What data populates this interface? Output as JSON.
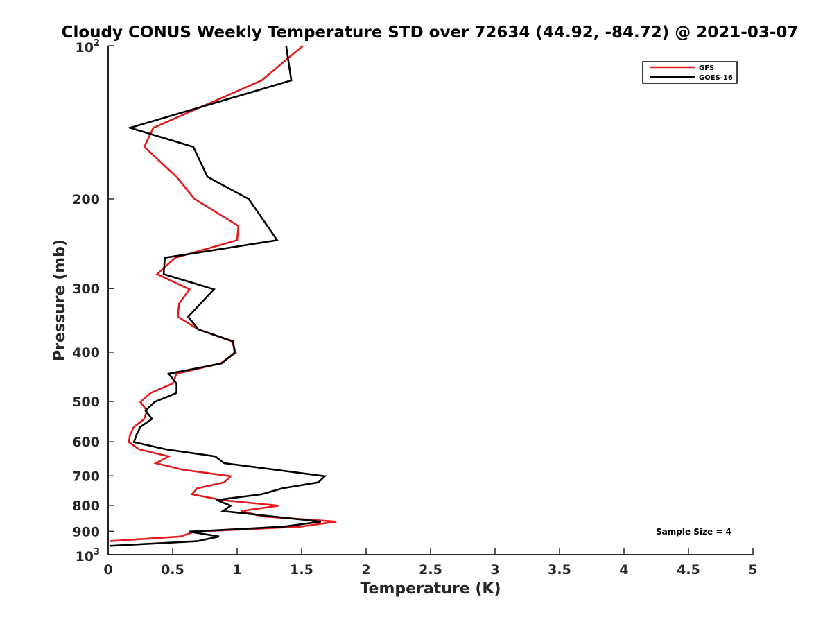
{
  "chart_data": {
    "type": "line",
    "title": "Cloudy CONUS Weekly Temperature STD over 72634 (44.92, -84.72) @ 2021-03-07",
    "xlabel": "Temperature (K)",
    "ylabel": "Pressure (mb)",
    "xlim": [
      0,
      5
    ],
    "ylim": [
      100,
      1000
    ],
    "y_scale": "log",
    "y_reversed": true,
    "x_ticks": [
      "0",
      "0.5",
      "1",
      "1.5",
      "2",
      "2.5",
      "3",
      "3.5",
      "4",
      "4.5",
      "5"
    ],
    "y_ticks": [
      {
        "value": 100,
        "base": "10",
        "exp": "2"
      },
      {
        "value": 200,
        "label": "200"
      },
      {
        "value": 300,
        "label": "300"
      },
      {
        "value": 400,
        "label": "400"
      },
      {
        "value": 500,
        "label": "500"
      },
      {
        "value": 600,
        "label": "600"
      },
      {
        "value": 700,
        "label": "700"
      },
      {
        "value": 800,
        "label": "800"
      },
      {
        "value": 900,
        "label": "900"
      },
      {
        "value": 1000,
        "base": "10",
        "exp": "3"
      }
    ],
    "grid": false,
    "legend_position": "top-right",
    "annotation": "Sample Size = 4",
    "series": [
      {
        "name": "GFS",
        "color": "#e41a1c",
        "points": [
          [
            1.51,
            100
          ],
          [
            1.19,
            117
          ],
          [
            0.35,
            145
          ],
          [
            0.28,
            158
          ],
          [
            0.53,
            181
          ],
          [
            0.67,
            200
          ],
          [
            1.01,
            226
          ],
          [
            1.0,
            241
          ],
          [
            0.52,
            261
          ],
          [
            0.38,
            281
          ],
          [
            0.63,
            301
          ],
          [
            0.55,
            321
          ],
          [
            0.54,
            341
          ],
          [
            0.7,
            361
          ],
          [
            0.96,
            381
          ],
          [
            0.99,
            401
          ],
          [
            0.87,
            421
          ],
          [
            0.53,
            441
          ],
          [
            0.5,
            461
          ],
          [
            0.33,
            481
          ],
          [
            0.25,
            501
          ],
          [
            0.3,
            521
          ],
          [
            0.28,
            541
          ],
          [
            0.2,
            561
          ],
          [
            0.17,
            581
          ],
          [
            0.16,
            601
          ],
          [
            0.24,
            621
          ],
          [
            0.47,
            641
          ],
          [
            0.37,
            661
          ],
          [
            0.58,
            681
          ],
          [
            0.95,
            701
          ],
          [
            0.9,
            721
          ],
          [
            0.69,
            741
          ],
          [
            0.65,
            761
          ],
          [
            0.88,
            781
          ],
          [
            1.32,
            801
          ],
          [
            1.03,
            821
          ],
          [
            1.2,
            841
          ],
          [
            1.77,
            861
          ],
          [
            1.49,
            881
          ],
          [
            0.67,
            901
          ],
          [
            0.56,
            921
          ],
          [
            0.01,
            941
          ]
        ]
      },
      {
        "name": "GOES-16",
        "color": "#000000",
        "points": [
          [
            1.38,
            100
          ],
          [
            1.42,
            117
          ],
          [
            0.17,
            145
          ],
          [
            0.66,
            158
          ],
          [
            0.77,
            181
          ],
          [
            1.09,
            200
          ],
          [
            1.31,
            241
          ],
          [
            0.44,
            261
          ],
          [
            0.43,
            281
          ],
          [
            0.82,
            301
          ],
          [
            0.62,
            341
          ],
          [
            0.7,
            361
          ],
          [
            0.97,
            381
          ],
          [
            0.98,
            401
          ],
          [
            0.88,
            421
          ],
          [
            0.47,
            441
          ],
          [
            0.53,
            461
          ],
          [
            0.53,
            481
          ],
          [
            0.36,
            501
          ],
          [
            0.29,
            521
          ],
          [
            0.34,
            541
          ],
          [
            0.25,
            561
          ],
          [
            0.22,
            581
          ],
          [
            0.2,
            601
          ],
          [
            0.45,
            621
          ],
          [
            0.83,
            641
          ],
          [
            0.9,
            661
          ],
          [
            1.68,
            701
          ],
          [
            1.63,
            721
          ],
          [
            1.35,
            741
          ],
          [
            1.19,
            761
          ],
          [
            0.84,
            781
          ],
          [
            0.95,
            801
          ],
          [
            0.89,
            821
          ],
          [
            1.65,
            861
          ],
          [
            1.36,
            881
          ],
          [
            0.63,
            901
          ],
          [
            0.86,
            921
          ],
          [
            0.69,
            941
          ],
          [
            0.01,
            961
          ]
        ]
      }
    ]
  }
}
